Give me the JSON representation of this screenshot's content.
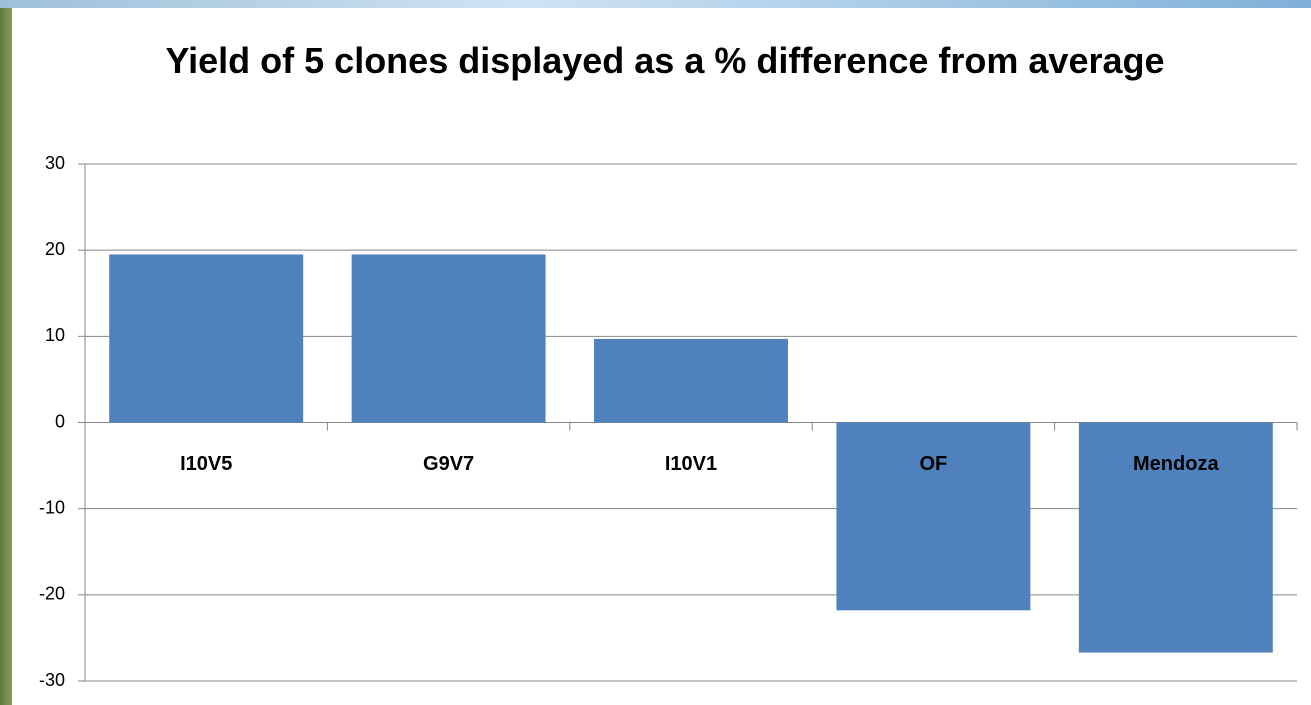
{
  "chart_data": {
    "type": "bar",
    "title": "Yield of 5 clones displayed as a % difference from average",
    "categories": [
      "I10V5",
      "G9V7",
      "I10V1",
      "OF",
      "Mendoza"
    ],
    "values": [
      19.5,
      19.5,
      9.7,
      -21.8,
      -26.7
    ],
    "color": "#4f81bd",
    "ylim": [
      -30,
      30
    ],
    "yticks": [
      -30,
      -20,
      -10,
      0,
      10,
      20,
      30
    ],
    "grid": true
  }
}
